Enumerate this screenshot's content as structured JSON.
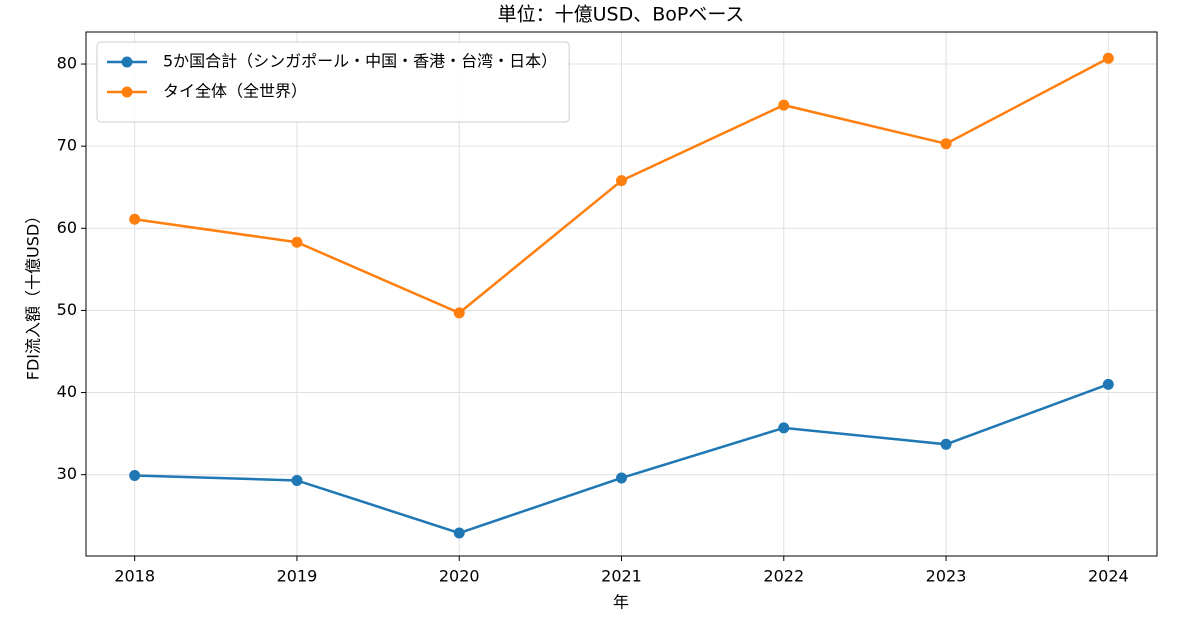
{
  "chart_data": {
    "type": "line",
    "title": "単位：十億USD、BoPベース",
    "xlabel": "年",
    "ylabel": "FDI流入額（十億USD）",
    "x": [
      2018,
      2019,
      2020,
      2021,
      2022,
      2023,
      2024
    ],
    "series": [
      {
        "name": "5か国合計（シンガポール・中国・香港・台湾・日本）",
        "color": "#1f77b4",
        "values": [
          29.9,
          29.3,
          22.9,
          29.6,
          35.7,
          33.7,
          41.0
        ]
      },
      {
        "name": "タイ全体（全世界）",
        "color": "#ff7f0e",
        "values": [
          61.1,
          58.3,
          49.7,
          65.8,
          75.0,
          70.3,
          80.7
        ]
      }
    ],
    "xlim": [
      2017.7,
      2024.3
    ],
    "xticks": [
      2018,
      2019,
      2020,
      2021,
      2022,
      2023,
      2024
    ],
    "ylim": [
      20.1,
      83.9
    ],
    "yticks": [
      30,
      40,
      50,
      60,
      70,
      80
    ],
    "grid": true,
    "legend": "upper-left"
  }
}
